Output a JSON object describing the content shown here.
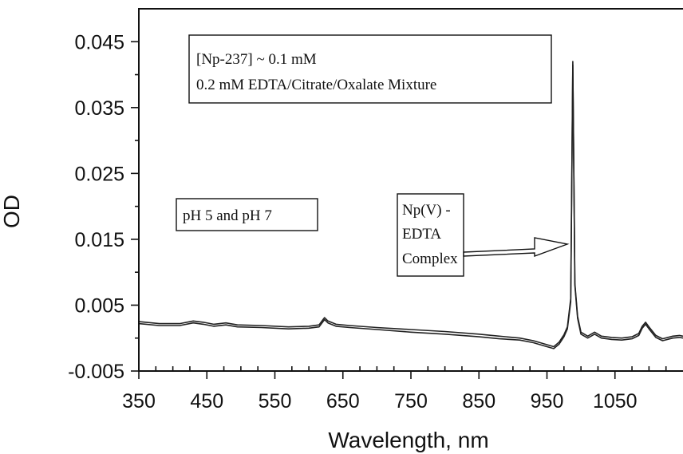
{
  "chart_data": {
    "type": "line",
    "xlabel": "Wavelength, nm",
    "ylabel": "OD",
    "xlim": [
      350,
      1150
    ],
    "ylim": [
      -0.005,
      0.05
    ],
    "x_ticks": [
      350,
      450,
      550,
      650,
      750,
      850,
      950,
      1050
    ],
    "x_tick_labels": [
      "350",
      "450",
      "550",
      "650",
      "750",
      "850",
      "950",
      "1050"
    ],
    "y_ticks": [
      -0.005,
      0.005,
      0.015,
      0.025,
      0.035,
      0.045
    ],
    "y_tick_labels": [
      "-0.005",
      "0.005",
      "0.015",
      "0.025",
      "0.035",
      "0.045"
    ],
    "grid": false,
    "legend": "none",
    "annotations": [
      {
        "id": "conditions-box",
        "lines": [
          "[Np-237] ~ 0.1 mM",
          "0.2 mM EDTA/Citrate/Oxalate Mixture"
        ]
      },
      {
        "id": "ph-box",
        "lines": [
          "pH 5 and pH 7"
        ]
      },
      {
        "id": "complex-box",
        "lines": [
          "Np(V) -",
          "EDTA",
          "Complex"
        ],
        "arrow_to_x": 988
      }
    ],
    "series": [
      {
        "x": [
          350,
          380,
          410,
          430,
          445,
          460,
          478,
          495,
          530,
          570,
          600,
          615,
          620,
          623,
          628,
          640,
          660,
          700,
          750,
          800,
          850,
          880,
          910,
          930,
          950,
          960,
          968,
          975,
          980,
          985,
          988,
          991,
          995,
          1000,
          1010,
          1020,
          1030,
          1045,
          1060,
          1075,
          1085,
          1090,
          1095,
          1100,
          1110,
          1120,
          1135,
          1145,
          1150
        ],
        "values": [
          0.0022,
          0.0019,
          0.0019,
          0.0023,
          0.0021,
          0.0018,
          0.002,
          0.0017,
          0.0016,
          0.0014,
          0.0015,
          0.0017,
          0.0024,
          0.0028,
          0.0023,
          0.0018,
          0.0016,
          0.0013,
          0.0009,
          0.0006,
          0.0002,
          -0.0001,
          -0.0003,
          -0.0007,
          -0.0013,
          -0.0016,
          -0.0009,
          0.0002,
          0.0014,
          0.0055,
          0.0415,
          0.008,
          0.003,
          0.0006,
          0.0,
          0.0006,
          0.0,
          -0.0002,
          -0.0003,
          -0.0001,
          0.0004,
          0.0015,
          0.0021,
          0.0014,
          0.0001,
          -0.0004,
          0.0,
          0.0001,
          0.0
        ]
      },
      {
        "x": [
          350,
          380,
          410,
          430,
          445,
          460,
          478,
          495,
          530,
          570,
          600,
          615,
          620,
          623,
          628,
          640,
          660,
          700,
          750,
          800,
          850,
          880,
          910,
          930,
          950,
          960,
          968,
          975,
          980,
          985,
          988,
          991,
          995,
          1000,
          1010,
          1020,
          1030,
          1045,
          1060,
          1075,
          1085,
          1090,
          1095,
          1100,
          1110,
          1120,
          1135,
          1145,
          1150
        ],
        "values": [
          0.0025,
          0.0022,
          0.0022,
          0.0026,
          0.0024,
          0.0021,
          0.0023,
          0.002,
          0.0019,
          0.0017,
          0.0018,
          0.002,
          0.0027,
          0.0031,
          0.0026,
          0.0021,
          0.0019,
          0.0016,
          0.0013,
          0.001,
          0.0006,
          0.0003,
          0.0,
          -0.0004,
          -0.001,
          -0.0013,
          -0.0006,
          0.0005,
          0.0017,
          0.006,
          0.042,
          0.0083,
          0.0033,
          0.0009,
          0.0003,
          0.0009,
          0.0003,
          0.0001,
          0.0,
          0.0002,
          0.0007,
          0.0018,
          0.0024,
          0.0017,
          0.0004,
          -0.0001,
          0.0003,
          0.0004,
          0.0003
        ]
      }
    ]
  }
}
